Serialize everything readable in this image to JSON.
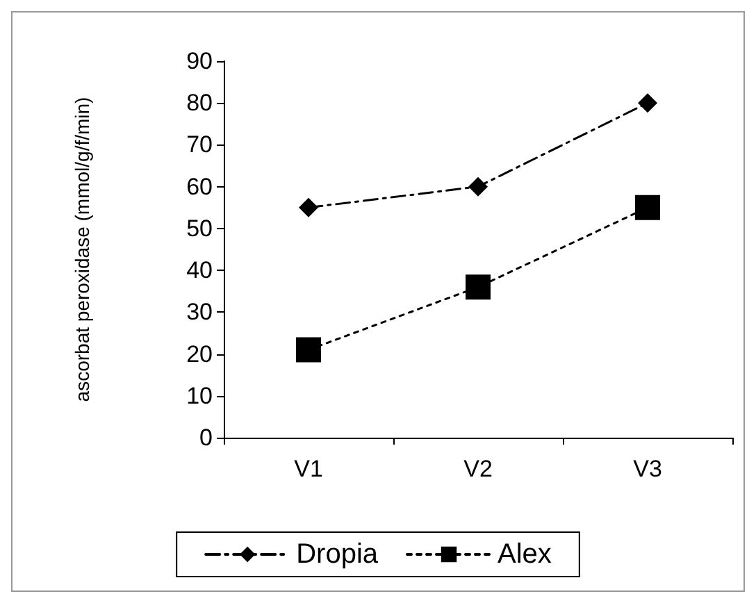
{
  "chart_data": {
    "type": "line",
    "ylabel": "ascorbat peroxidase (mmol/g/f/min)",
    "categories": [
      "V1",
      "V2",
      "V3"
    ],
    "ylim": [
      0,
      90
    ],
    "yticks": [
      0,
      10,
      20,
      30,
      40,
      50,
      60,
      70,
      80,
      90
    ],
    "grid": false,
    "legend": "bottom",
    "series": [
      {
        "name": "Dropia",
        "color": "#000000",
        "values": [
          55,
          60,
          80
        ],
        "marker": "diamond",
        "line_style": "dashed"
      },
      {
        "name": "Alex",
        "color": "#000000",
        "values": [
          21,
          36,
          55
        ],
        "marker": "square",
        "line_style": "dotted"
      }
    ]
  }
}
